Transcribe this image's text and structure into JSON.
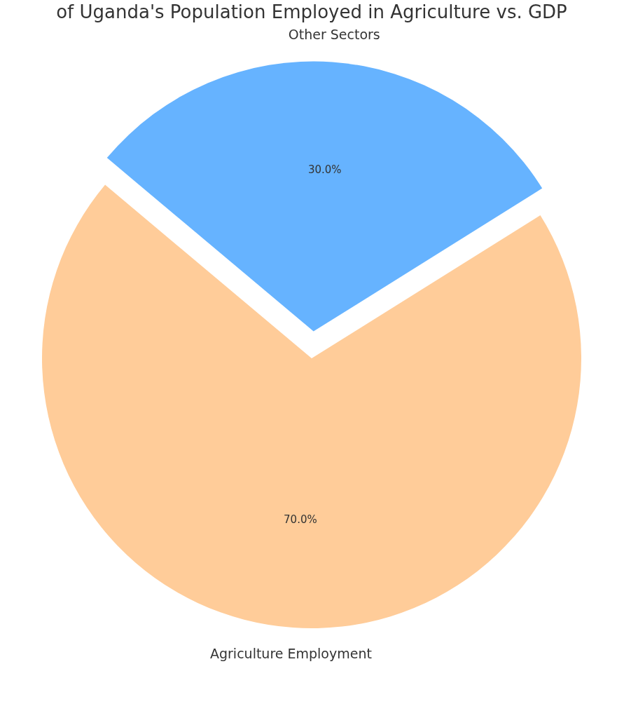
{
  "chart_data": {
    "type": "pie",
    "title": "of Uganda's Population Employed in Agriculture vs. GDP",
    "categories": [
      "Agriculture Employment",
      "Other Sectors"
    ],
    "values": [
      70,
      30
    ],
    "colors": [
      "#ffcc99",
      "#66b3ff"
    ],
    "value_labels": [
      "70.0%",
      "30.0%"
    ]
  }
}
